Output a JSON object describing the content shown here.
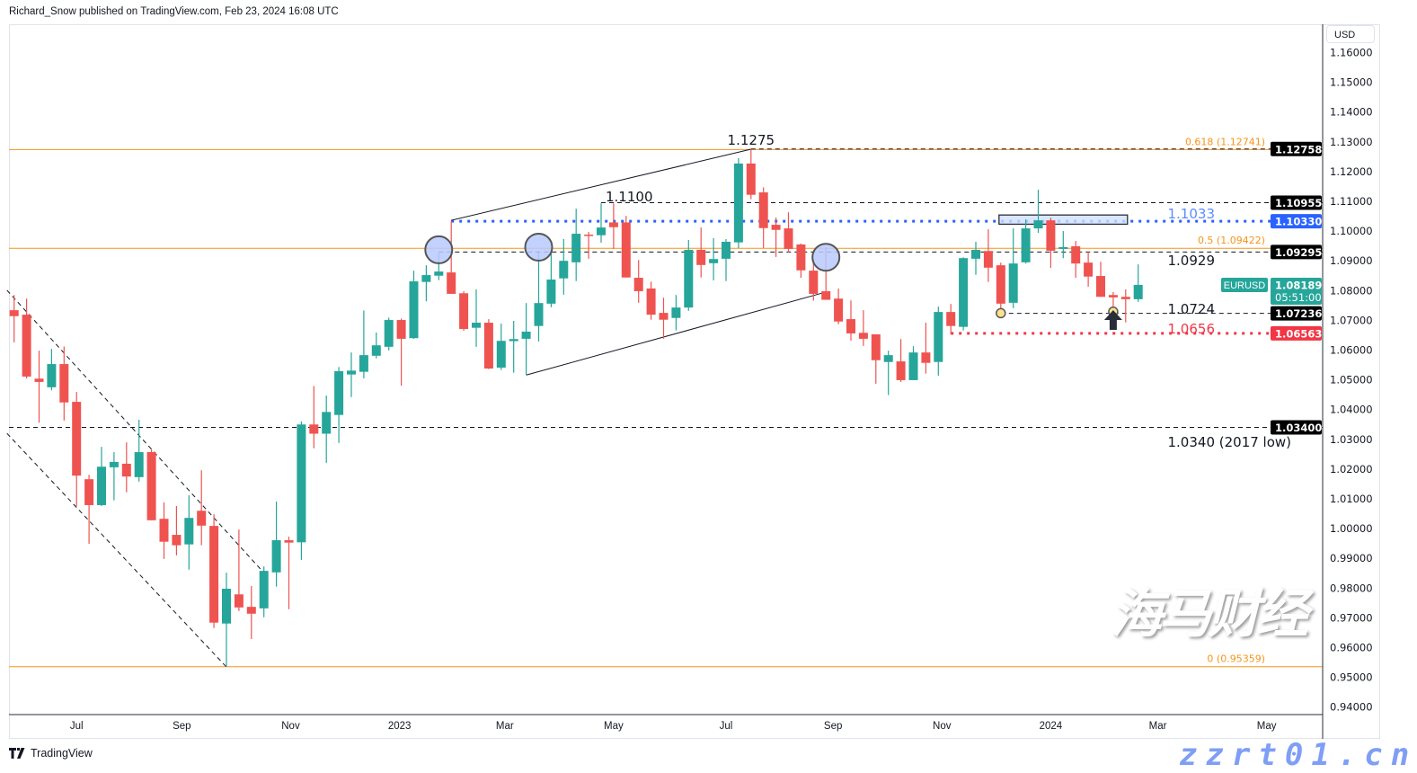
{
  "header": {
    "published": "Richard_Snow published on TradingView.com, Feb 23, 2024 16:08 UTC"
  },
  "toolbar": {
    "currency": "USD"
  },
  "footer": {
    "logo_text": "TradingView"
  },
  "watermark": {
    "cn": "海马财经",
    "url": "zzrt01.cn"
  },
  "colors": {
    "up": "#26a69a",
    "down": "#ef5350",
    "fib": "#f7931a",
    "blue_level": "#2962ff",
    "red_level": "#f23645",
    "label_dark": "#131722",
    "circle_fill": "#b8c9ff",
    "zone_fill": "#cfe0ff"
  },
  "chart_data": {
    "type": "candlestick",
    "symbol": "EURUSD",
    "ylim": [
      0.9375,
      1.1695
    ],
    "y_ticks": [
      "0.94000",
      "0.95000",
      "0.96000",
      "0.97000",
      "0.98000",
      "0.99000",
      "1.00000",
      "1.01000",
      "1.02000",
      "1.03000",
      "1.04000",
      "1.05000",
      "1.06000",
      "1.07000",
      "1.08000",
      "1.09000",
      "1.10000",
      "1.11000",
      "1.12000",
      "1.13000",
      "1.14000",
      "1.15000",
      "1.16000"
    ],
    "x_ticks": [
      {
        "label": "Jul",
        "date": "2022-07-04"
      },
      {
        "label": "Sep",
        "date": "2022-09-01"
      },
      {
        "label": "Nov",
        "date": "2022-11-01"
      },
      {
        "label": "2023",
        "date": "2023-01-01"
      },
      {
        "label": "Mar",
        "date": "2023-03-01"
      },
      {
        "label": "May",
        "date": "2023-05-01"
      },
      {
        "label": "Jul",
        "date": "2023-07-03"
      },
      {
        "label": "Sep",
        "date": "2023-09-01"
      },
      {
        "label": "Nov",
        "date": "2023-11-01"
      },
      {
        "label": "2024",
        "date": "2024-01-01"
      },
      {
        "label": "Mar",
        "date": "2024-03-01"
      },
      {
        "label": "May",
        "date": "2024-05-01"
      }
    ],
    "candles_format": [
      "date",
      "open",
      "high",
      "low",
      "close"
    ],
    "candles": [
      [
        "2022-05-30",
        1.0734,
        1.0785,
        1.0626,
        1.0714
      ],
      [
        "2022-06-06",
        1.0719,
        1.0773,
        1.0505,
        1.0511
      ],
      [
        "2022-06-13",
        1.0504,
        1.0598,
        1.0356,
        1.0493
      ],
      [
        "2022-06-20",
        1.0475,
        1.0604,
        1.0465,
        1.0553
      ],
      [
        "2022-06-27",
        1.0553,
        1.0612,
        1.0363,
        1.0424
      ],
      [
        "2022-07-04",
        1.0426,
        1.0459,
        1.0075,
        1.0178
      ],
      [
        "2022-07-11",
        1.0166,
        1.0181,
        0.9949,
        1.0079
      ],
      [
        "2022-07-18",
        1.0079,
        1.0275,
        1.0076,
        1.0208
      ],
      [
        "2022-07-25",
        1.0206,
        1.0257,
        1.0095,
        1.0224
      ],
      [
        "2022-08-01",
        1.0218,
        1.029,
        1.0122,
        1.0175
      ],
      [
        "2022-08-08",
        1.0173,
        1.0366,
        1.0158,
        1.0257
      ],
      [
        "2022-08-15",
        1.0257,
        1.0265,
        1.0028,
        1.0028
      ],
      [
        "2022-08-22",
        1.0033,
        1.0088,
        0.9898,
        0.9956
      ],
      [
        "2022-08-29",
        0.9979,
        1.0076,
        0.991,
        0.9944
      ],
      [
        "2022-09-05",
        0.9947,
        1.0112,
        0.9862,
        1.0036
      ],
      [
        "2022-09-12",
        1.006,
        1.0196,
        0.9944,
        1.001
      ],
      [
        "2022-09-19",
        1.0009,
        1.0048,
        0.9666,
        0.9684
      ],
      [
        "2022-09-26",
        0.9681,
        0.9852,
        0.9536,
        0.9798
      ],
      [
        "2022-10-03",
        0.9779,
        0.9997,
        0.9723,
        0.9735
      ],
      [
        "2022-10-10",
        0.9737,
        0.9807,
        0.9629,
        0.9714
      ],
      [
        "2022-10-17",
        0.9732,
        0.9873,
        0.9702,
        0.9858
      ],
      [
        "2022-10-24",
        0.9853,
        1.0091,
        0.9805,
        0.9961
      ],
      [
        "2022-10-31",
        0.9961,
        0.9973,
        0.9729,
        0.9953
      ],
      [
        "2022-11-07",
        0.9954,
        1.036,
        0.9895,
        1.035
      ],
      [
        "2022-11-14",
        1.035,
        1.0479,
        1.027,
        1.0319
      ],
      [
        "2022-11-21",
        1.0319,
        1.0447,
        1.0221,
        1.0392
      ],
      [
        "2022-11-28",
        1.0382,
        1.0543,
        1.0288,
        1.0529
      ],
      [
        "2022-12-05",
        1.0518,
        1.0592,
        1.0442,
        1.0531
      ],
      [
        "2022-12-12",
        1.0527,
        1.0733,
        1.0505,
        1.0583
      ],
      [
        "2022-12-19",
        1.0581,
        1.0659,
        1.0572,
        1.0616
      ],
      [
        "2022-12-26",
        1.0611,
        1.0709,
        1.0599,
        1.0701
      ],
      [
        "2023-01-02",
        1.0701,
        1.0706,
        1.048,
        1.0638
      ],
      [
        "2023-01-09",
        1.064,
        1.0867,
        1.0638,
        1.0831
      ],
      [
        "2023-01-16",
        1.0829,
        1.0885,
        1.0764,
        1.0852
      ],
      [
        "2023-01-23",
        1.085,
        1.0927,
        1.0835,
        1.0864
      ],
      [
        "2023-01-30",
        1.0861,
        1.1033,
        1.0789,
        1.0789
      ],
      [
        "2023-02-06",
        1.0791,
        1.0798,
        1.0665,
        1.0671
      ],
      [
        "2023-02-13",
        1.0675,
        1.0804,
        1.0611,
        1.0692
      ],
      [
        "2023-02-20",
        1.0692,
        1.0704,
        1.0536,
        1.0538
      ],
      [
        "2023-02-27",
        1.0541,
        1.0689,
        1.0533,
        1.0631
      ],
      [
        "2023-03-06",
        1.063,
        1.0698,
        1.0524,
        1.0637
      ],
      [
        "2023-03-13",
        1.0638,
        1.0758,
        1.0516,
        1.0662
      ],
      [
        "2023-03-20",
        1.0681,
        1.0927,
        1.0629,
        1.0758
      ],
      [
        "2023-03-27",
        1.0756,
        1.093,
        1.0744,
        1.0837
      ],
      [
        "2023-04-03",
        1.0841,
        1.0973,
        1.0786,
        1.09
      ],
      [
        "2023-04-10",
        1.0895,
        1.1075,
        1.0832,
        1.0991
      ],
      [
        "2023-04-17",
        1.0988,
        1.0997,
        1.0907,
        1.0986
      ],
      [
        "2023-04-24",
        1.0986,
        1.1093,
        1.0961,
        1.1012
      ],
      [
        "2023-05-01",
        1.1029,
        1.1093,
        1.094,
        1.1013
      ],
      [
        "2023-05-08",
        1.1029,
        1.1051,
        1.0844,
        1.0844
      ],
      [
        "2023-05-15",
        1.0843,
        1.0903,
        1.0759,
        1.0798
      ],
      [
        "2023-05-22",
        1.0807,
        1.083,
        1.0702,
        1.0719
      ],
      [
        "2023-05-29",
        1.0725,
        1.0776,
        1.0638,
        1.0702
      ],
      [
        "2023-06-05",
        1.0708,
        1.0785,
        1.0666,
        1.0743
      ],
      [
        "2023-06-12",
        1.0743,
        1.097,
        1.0732,
        1.0937
      ],
      [
        "2023-06-19",
        1.0937,
        1.1012,
        1.0844,
        1.0886
      ],
      [
        "2023-06-26",
        1.0892,
        1.0976,
        1.0834,
        1.0906
      ],
      [
        "2023-07-03",
        1.0907,
        1.0973,
        1.0832,
        1.0964
      ],
      [
        "2023-07-10",
        1.0962,
        1.1245,
        1.0943,
        1.1227
      ],
      [
        "2023-07-17",
        1.1227,
        1.1275,
        1.1107,
        1.1122
      ],
      [
        "2023-07-24",
        1.113,
        1.1147,
        1.0943,
        1.101
      ],
      [
        "2023-07-31",
        1.1021,
        1.1045,
        1.0913,
        1.1004
      ],
      [
        "2023-08-07",
        1.1009,
        1.1063,
        1.0927,
        1.094
      ],
      [
        "2023-08-14",
        1.0955,
        1.0958,
        1.0843,
        1.0868
      ],
      [
        "2023-08-21",
        1.0867,
        1.0906,
        1.0766,
        1.0789
      ],
      [
        "2023-08-28",
        1.0798,
        1.0946,
        1.0769,
        1.0769
      ],
      [
        "2023-09-04",
        1.0773,
        1.0807,
        1.0687,
        1.0696
      ],
      [
        "2023-09-11",
        1.0704,
        1.0767,
        1.0632,
        1.0656
      ],
      [
        "2023-09-18",
        1.0658,
        1.0734,
        1.0614,
        1.0638
      ],
      [
        "2023-09-25",
        1.0653,
        1.0653,
        1.0487,
        1.0566
      ],
      [
        "2023-10-02",
        1.056,
        1.0598,
        1.0449,
        1.0583
      ],
      [
        "2023-10-09",
        1.0562,
        1.0637,
        1.0493,
        1.0499
      ],
      [
        "2023-10-16",
        1.0499,
        1.0613,
        1.0499,
        1.0592
      ],
      [
        "2023-10-23",
        1.0592,
        1.0692,
        1.0521,
        1.0557
      ],
      [
        "2023-10-30",
        1.056,
        1.0746,
        1.0514,
        1.0728
      ],
      [
        "2023-11-06",
        1.0728,
        1.0755,
        1.0653,
        1.0681
      ],
      [
        "2023-11-13",
        1.0678,
        1.0912,
        1.0666,
        1.0909
      ],
      [
        "2023-11-20",
        1.0907,
        1.0964,
        1.0853,
        1.0937
      ],
      [
        "2023-11-27",
        1.0933,
        1.1006,
        1.0829,
        1.0877
      ],
      [
        "2023-12-04",
        1.0885,
        1.0894,
        1.0724,
        1.0756
      ],
      [
        "2023-12-11",
        1.0759,
        1.1009,
        1.0741,
        1.0891
      ],
      [
        "2023-12-18",
        1.0895,
        1.1039,
        1.0891,
        1.1009
      ],
      [
        "2023-12-25",
        1.1009,
        1.1139,
        1.0994,
        1.1036
      ],
      [
        "2024-01-01",
        1.1036,
        1.1045,
        1.0876,
        1.0934
      ],
      [
        "2024-01-08",
        1.094,
        1.1,
        1.0909,
        1.0946
      ],
      [
        "2024-01-15",
        1.0949,
        1.0967,
        1.0843,
        1.0891
      ],
      [
        "2024-01-22",
        1.0894,
        1.093,
        1.0813,
        1.0847
      ],
      [
        "2024-01-29",
        1.0849,
        1.0897,
        1.0779,
        1.0779
      ],
      [
        "2024-02-05",
        1.0785,
        1.0795,
        1.0724,
        1.0777
      ],
      [
        "2024-02-12",
        1.0779,
        1.0804,
        1.0693,
        1.0771
      ],
      [
        "2024-02-19",
        1.0771,
        1.0888,
        1.0762,
        1.0819
      ]
    ],
    "last_price": {
      "value": "1.08189",
      "price": 1.08189,
      "countdown": "05:51:00",
      "symbol_label": "EURUSD"
    },
    "fib_levels": [
      {
        "label": "0.618 (1.12741)",
        "price": 1.12741
      },
      {
        "label": "0.5 (1.09422)",
        "price": 1.09422
      },
      {
        "label": "0 (0.95359)",
        "price": 0.95359
      }
    ],
    "horizontal_levels": [
      {
        "price": 1.12758,
        "from": "2023-07-17",
        "style": "dashed",
        "color": "#131722",
        "axis_label": "1.12758"
      },
      {
        "price": 1.10955,
        "from": "2023-04-24",
        "style": "dashed",
        "color": "#131722",
        "axis_label": "1.10955"
      },
      {
        "price": 1.1033,
        "from": "2023-01-30",
        "style": "dotted",
        "color": "#2962ff",
        "axis_label": "1.10330"
      },
      {
        "price": 1.09295,
        "from": "2023-01-23",
        "style": "dashed",
        "color": "#131722",
        "axis_label": "1.09295"
      },
      {
        "price": 1.07236,
        "from": "2023-12-04",
        "style": "dashed",
        "color": "#131722",
        "axis_label": "1.07236"
      },
      {
        "price": 1.06563,
        "from": "2023-11-06",
        "style": "dotted",
        "color": "#f23645",
        "axis_label": "1.06563"
      },
      {
        "price": 1.034,
        "from": null,
        "style": "dashed",
        "color": "#131722",
        "axis_label": "1.03400"
      }
    ],
    "trendlines": [
      {
        "style": "dashed",
        "from": [
          "2022-05-26",
          1.0801
        ],
        "to": [
          "2022-10-16",
          0.9858
        ]
      },
      {
        "style": "dashed",
        "from": [
          "2022-05-26",
          1.032
        ],
        "to": [
          "2022-09-26",
          0.9535
        ]
      },
      {
        "style": "solid",
        "from": [
          "2023-01-30",
          1.1036
        ],
        "to": [
          "2023-07-17",
          1.1275
        ]
      },
      {
        "style": "solid",
        "from": [
          "2023-03-13",
          1.0516
        ],
        "to": [
          "2023-08-28",
          1.0795
        ]
      }
    ],
    "annotations": [
      {
        "text": "1.1275",
        "date": "2023-07-17",
        "price": 1.129,
        "anchor": "middle",
        "color": "#131722"
      },
      {
        "text": "1.1100",
        "date": "2023-04-24",
        "price": 1.11,
        "anchor": "start",
        "color": "#131722"
      },
      {
        "text": "1.1033",
        "date": "2024-03-04",
        "price": 1.1042,
        "anchor": "start",
        "color": "#5b8cff"
      },
      {
        "text": "1.0929",
        "date": "2024-03-04",
        "price": 1.0885,
        "anchor": "start",
        "color": "#131722"
      },
      {
        "text": "1.0724",
        "date": "2024-03-04",
        "price": 1.0722,
        "anchor": "start",
        "color": "#131722"
      },
      {
        "text": "1.0656",
        "date": "2024-03-04",
        "price": 1.0656,
        "anchor": "start",
        "color": "#f23645"
      },
      {
        "text": "1.0340 (2017 low)",
        "date": "2024-03-04",
        "price": 1.0275,
        "anchor": "start",
        "color": "#131722"
      }
    ],
    "circle_markers": [
      {
        "date": "2023-01-23",
        "price": 1.0937
      },
      {
        "date": "2023-03-20",
        "price": 1.0946
      },
      {
        "date": "2023-08-28",
        "price": 1.0912
      }
    ],
    "dot_markers": [
      {
        "date": "2023-12-04",
        "price": 1.0724
      },
      {
        "date": "2024-02-05",
        "price": 1.0729
      }
    ],
    "arrow_markers": [
      {
        "date": "2024-02-05",
        "price": 1.0695,
        "direction": "up"
      }
    ],
    "zones": [
      {
        "from": "2023-12-03",
        "to": "2024-02-13",
        "top": 1.1054,
        "bottom": 1.1023
      }
    ]
  }
}
